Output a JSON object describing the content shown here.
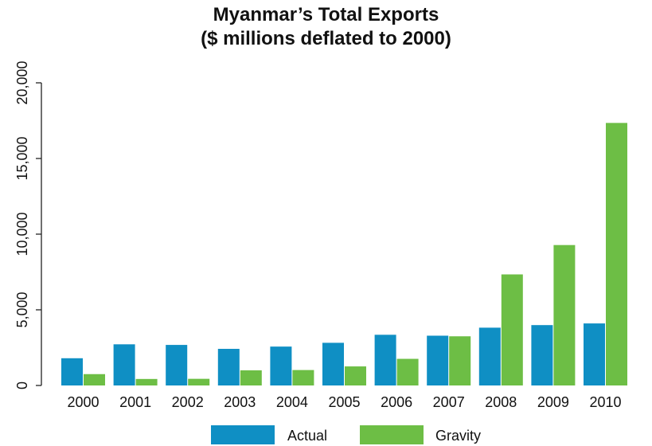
{
  "chart_data": {
    "type": "bar",
    "title": [
      "Myanmar’s Total Exports",
      "($ millions deflated to 2000)"
    ],
    "xlabel": "",
    "ylabel": "",
    "categories": [
      "2000",
      "2001",
      "2002",
      "2003",
      "2004",
      "2005",
      "2006",
      "2007",
      "2008",
      "2009",
      "2010"
    ],
    "series": [
      {
        "name": "Actual",
        "color": "#0f8fc4",
        "values": [
          1800,
          2720,
          2680,
          2420,
          2570,
          2820,
          3350,
          3290,
          3820,
          3990,
          4100
        ]
      },
      {
        "name": "Gravity",
        "color": "#6dbe45",
        "values": [
          750,
          430,
          440,
          1000,
          1020,
          1260,
          1760,
          3250,
          7340,
          9280,
          17350
        ]
      }
    ],
    "ylim": [
      0,
      20000
    ],
    "yticks": [
      0,
      5000,
      10000,
      15000,
      20000
    ],
    "ytick_labels": [
      "0",
      "5,000",
      "10,000",
      "15,000",
      "20,000"
    ],
    "grid": false,
    "legend_position": "bottom-center"
  }
}
